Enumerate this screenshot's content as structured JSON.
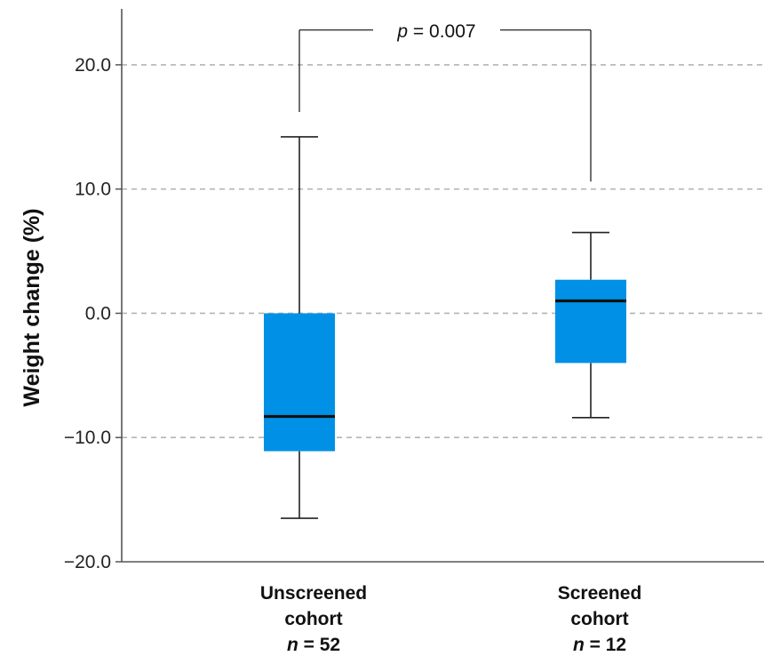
{
  "chart_data": {
    "type": "box",
    "ylabel": "Weight change (%)",
    "ylim": [
      -20,
      24.5
    ],
    "yticks": [
      -20,
      -10,
      0,
      10,
      20
    ],
    "ytick_labels": [
      "−20.0",
      "−10.0",
      "0.0",
      "10.0",
      "20.0"
    ],
    "grid": "horizontal dashed",
    "box_color": "#0091e6",
    "categories": [
      {
        "label_lines": [
          "Unscreened",
          "cohort"
        ],
        "n_prefix": "n",
        "n_text": " = 52",
        "min": -16.5,
        "q1": -11.1,
        "median": -8.3,
        "q3": 0.0,
        "max": 14.2
      },
      {
        "label_lines": [
          "Screened",
          "cohort"
        ],
        "n_prefix": "n",
        "n_text": " = 12",
        "min": -8.4,
        "q1": -4.0,
        "median": 1.0,
        "q3": 2.7,
        "max": 6.5
      }
    ],
    "annotation": {
      "p_symbol": "p",
      "p_text": " = 0.007",
      "bracket_y": 22.8,
      "left_drop_to": 16.2,
      "right_drop_to": 10.6
    }
  }
}
